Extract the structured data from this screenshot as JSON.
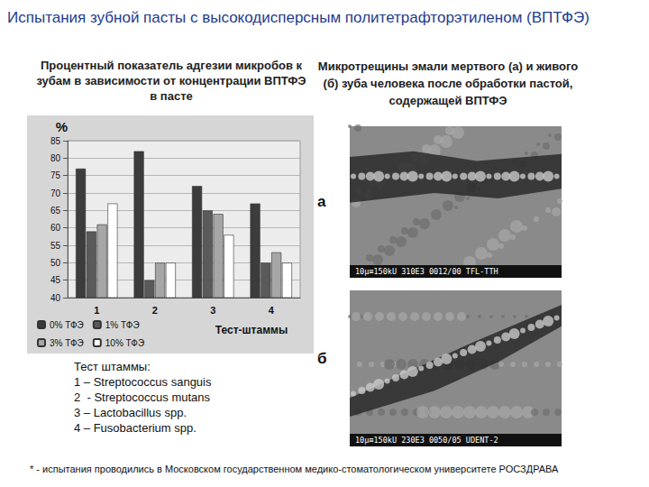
{
  "title": "Испытания зубной пасты с высокодисперсным политетрафторэтиленом (ВПТФЭ)",
  "chart_data": {
    "type": "bar",
    "title": "Процентный показатель адгезии микробов к зубам в зависимости от концентрации ВПТФЭ в пасте",
    "categories": [
      "1",
      "2",
      "3",
      "4"
    ],
    "xlabel": "Тест-штаммы",
    "ylabel": "%",
    "series": [
      {
        "name": "0% ТФЭ",
        "color": "#3c3c3c",
        "values": [
          77,
          82,
          72,
          67
        ]
      },
      {
        "name": "1% ТФЭ",
        "color": "#5a5a5a",
        "values": [
          59,
          45,
          65,
          50
        ]
      },
      {
        "name": "3% ТФЭ",
        "color": "#a6a6a6",
        "values": [
          61,
          50,
          64,
          53
        ]
      },
      {
        "name": "10% ТФЭ",
        "color": "#ffffff",
        "values": [
          67,
          50,
          58,
          50
        ]
      }
    ],
    "ylim": [
      40,
      85
    ],
    "yticks": [
      40,
      45,
      50,
      55,
      60,
      65,
      70,
      75,
      80,
      85
    ],
    "grid": true,
    "legend": "lower left"
  },
  "strains": {
    "heading": "Тест штаммы:",
    "items": [
      "1 – Streptococcus sanguis",
      "2  - Streptococcus mutans",
      "3 – Lactobacillus spp.",
      "4 – Fusobacterium spp."
    ]
  },
  "micrographs": {
    "title": "Микротрещины эмали мертвого (а) и живого (б) зуба человека после обработки пастой, содержащей ВПТФЭ",
    "panels": [
      {
        "label": "а",
        "caption": "10μ≡150kU 310E3 0012/00 TFL-TTH"
      },
      {
        "label": "б",
        "caption": "10μ≡150kU 230E3 0050/05 UDENT-2"
      }
    ]
  },
  "footnote": "* - испытания проводились в Московском государственном медико-стоматологическом университете РОСЗДРАВА"
}
